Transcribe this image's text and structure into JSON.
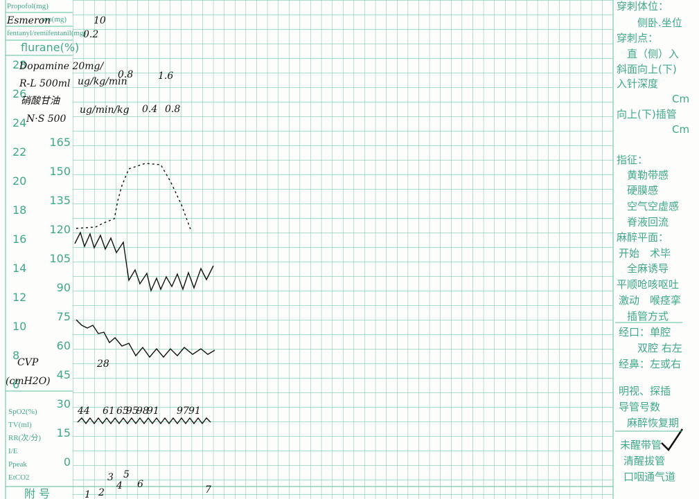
{
  "left_labels": {
    "drugs": [
      "Propofol(mg)",
      "ron(mg)",
      "fentanyl/remifentanil(mg)",
      "flurane(%)"
    ],
    "scale_left": [
      "28",
      "26",
      "24",
      "22",
      "20",
      "18",
      "16",
      "14",
      "12",
      "10",
      "8",
      "6"
    ],
    "scale_right": [
      "165",
      "150",
      "135",
      "120",
      "105",
      "90",
      "75",
      "60",
      "45",
      "30",
      "15",
      "0"
    ],
    "resp": [
      "SpO2(%)",
      "TV(ml)",
      "RR(次/分)",
      "I/E",
      "Ppeak",
      "EtCO2"
    ],
    "footer": "附 号"
  },
  "handwriting": {
    "esmeron": "Esmeron",
    "esmeron_dose": "10",
    "fent_dose": "0.2",
    "dopamine": "Dopamine 20mg/",
    "rl": "R-L 500ml",
    "dopa_unit": "ug/kg/min",
    "dopa_v1": "0.8",
    "dopa_v2": "1.6",
    "ntg": "硝酸甘油",
    "ns": "N·S 500",
    "ntg_unit": "ug/min/kg",
    "ntg_v1": "0.4",
    "ntg_v2": "0.8",
    "cvp": "CVP",
    "cvp_unit": "(cmH2O)",
    "cvp_value": "28",
    "spo2": [
      "44",
      "61",
      "65",
      "95",
      "98",
      "91",
      "97",
      "91"
    ],
    "events": [
      "1",
      "2",
      "3",
      "4",
      "5",
      "6",
      "7"
    ]
  },
  "right_panel": [
    "穿刺体位：",
    "侧卧.坐位",
    "穿刺点：",
    "直（侧）入",
    "斜面向上(下)",
    "入针深度",
    "Cm",
    "向上(下)插管",
    "Cm",
    "指征：",
    "黄勒带感",
    "硬膜感",
    "空气空虚感",
    "脊液回流",
    "麻醉平面：",
    "开始　术毕",
    "全麻诱导",
    "平顺呛咳呕吐",
    "激动　喉痉挛",
    "插管方式",
    "经口：单腔",
    "双腔 右左",
    "经鼻：左或右",
    "明视、探插",
    "导管号数",
    "麻醉恢复期",
    "未醒带管",
    "清醒拔管",
    "口咽通气道"
  ]
}
